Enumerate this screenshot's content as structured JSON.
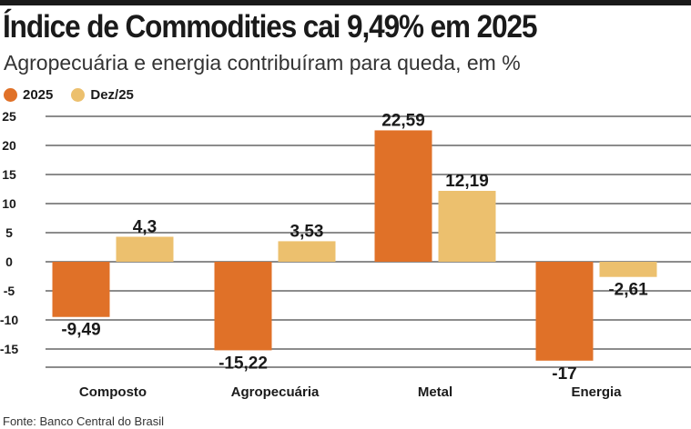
{
  "title": "Índice de Commodities cai 9,49% em 2025",
  "subtitle": "Agropecuária e energia contribuíram para queda, em %",
  "source": "Fonte: Banco Central do Brasil",
  "colors": {
    "series_2025": "#e07128",
    "series_dez25": "#ecc06e",
    "grid": "#1a1a1a"
  },
  "chart_data": {
    "type": "bar",
    "title": "Índice de Commodities cai 9,49% em 2025",
    "subtitle": "Agropecuária e energia contribuíram para queda, em %",
    "categories": [
      "Composto",
      "Agropecuária",
      "Metal",
      "Energia"
    ],
    "series": [
      {
        "name": "2025",
        "values": [
          -9.49,
          -15.22,
          22.59,
          -17
        ],
        "labels": [
          "-9,49",
          "-15,22",
          "22,59",
          "-17"
        ]
      },
      {
        "name": "Dez/25",
        "values": [
          4.3,
          3.53,
          12.19,
          -2.61
        ],
        "labels": [
          "4,3",
          "3,53",
          "12,19",
          "-2,61"
        ]
      }
    ],
    "yticks": [
      25,
      20,
      15,
      10,
      5,
      0,
      -5,
      -10,
      -15
    ],
    "ytick_labels": [
      "25",
      "20",
      "15",
      "10",
      "5",
      "0",
      "-5",
      "-10",
      "-15"
    ],
    "ylim": [
      -17.5,
      25
    ],
    "legend": "top-left",
    "grid": true
  }
}
